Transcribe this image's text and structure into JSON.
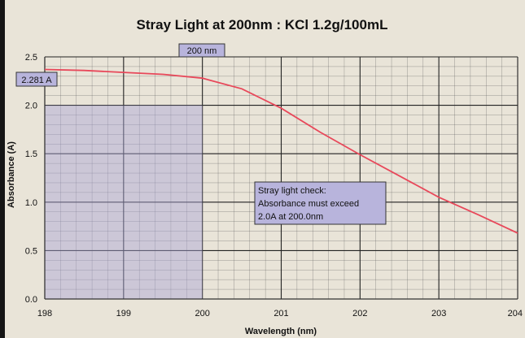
{
  "chart_data": {
    "type": "line",
    "title": "Stray Light at 200nm : KCl  1.2g/100mL",
    "xlabel": "Wavelength (nm)",
    "ylabel": "Absorbance (A)",
    "xlim": [
      198,
      204
    ],
    "ylim": [
      0.0,
      2.5
    ],
    "x_ticks": [
      "198",
      "199",
      "200",
      "201",
      "202",
      "203",
      "204"
    ],
    "y_ticks": [
      "0.0",
      "0.5",
      "1.0",
      "1.5",
      "2.0",
      "2.5"
    ],
    "grid": true,
    "series": [
      {
        "color": "#e8485a",
        "points": [
          [
            198.0,
            2.37
          ],
          [
            198.5,
            2.36
          ],
          [
            199.0,
            2.34
          ],
          [
            199.5,
            2.32
          ],
          [
            200.0,
            2.28
          ],
          [
            200.5,
            2.17
          ],
          [
            201.0,
            1.97
          ],
          [
            201.5,
            1.72
          ],
          [
            202.0,
            1.49
          ],
          [
            202.5,
            1.27
          ],
          [
            203.0,
            1.05
          ],
          [
            203.5,
            0.87
          ],
          [
            204.0,
            0.68
          ]
        ]
      }
    ],
    "shaded_region": {
      "x": [
        198,
        200
      ],
      "y": [
        0.0,
        2.0
      ],
      "color": "#a9a3d8"
    },
    "annotations": {
      "marker_x": {
        "text": "200 nm",
        "x": 200
      },
      "marker_y": {
        "text": "2.281 A",
        "y": 2.281
      },
      "note_lines": [
        "Stray light check:",
        "Absorbance must exceed",
        "2.0A at 200.0nm"
      ]
    }
  }
}
